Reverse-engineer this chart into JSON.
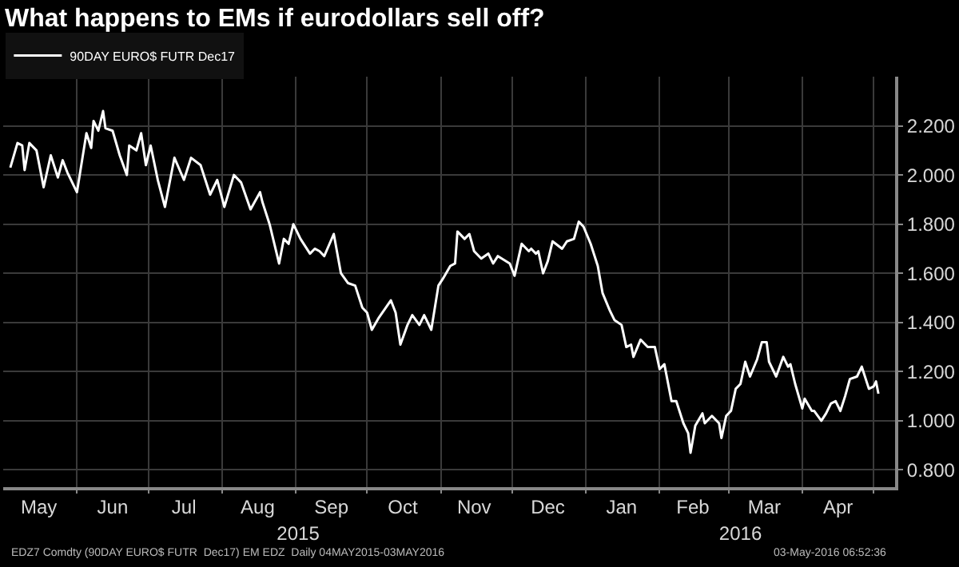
{
  "chart_data": {
    "type": "line",
    "title": "What happens to EMs if eurodollars sell off?",
    "x": [
      "2015-05-04",
      "2015-05-07",
      "2015-05-09",
      "2015-05-10",
      "2015-05-12",
      "2015-05-15",
      "2015-05-18",
      "2015-05-21",
      "2015-05-24",
      "2015-05-26",
      "2015-05-28",
      "2015-06-01",
      "2015-06-05",
      "2015-06-07",
      "2015-06-08",
      "2015-06-10",
      "2015-06-12",
      "2015-06-13",
      "2015-06-16",
      "2015-06-19",
      "2015-06-22",
      "2015-06-23",
      "2015-06-26",
      "2015-06-28",
      "2015-06-30",
      "2015-07-02",
      "2015-07-05",
      "2015-07-08",
      "2015-07-12",
      "2015-07-16",
      "2015-07-19",
      "2015-07-23",
      "2015-07-27",
      "2015-07-30",
      "2015-08-02",
      "2015-08-06",
      "2015-08-09",
      "2015-08-13",
      "2015-08-17",
      "2015-08-18",
      "2015-08-21",
      "2015-08-25",
      "2015-08-27",
      "2015-08-29",
      "2015-08-31",
      "2015-09-03",
      "2015-09-07",
      "2015-09-09",
      "2015-09-11",
      "2015-09-13",
      "2015-09-17",
      "2015-09-20",
      "2015-09-23",
      "2015-09-26",
      "2015-09-29",
      "2015-10-01",
      "2015-10-03",
      "2015-10-06",
      "2015-10-11",
      "2015-10-13",
      "2015-10-15",
      "2015-10-18",
      "2015-10-20",
      "2015-10-23",
      "2015-10-25",
      "2015-10-28",
      "2015-10-31",
      "2015-11-02",
      "2015-11-05",
      "2015-11-07",
      "2015-11-08",
      "2015-11-11",
      "2015-11-13",
      "2015-11-15",
      "2015-11-18",
      "2015-11-21",
      "2015-11-23",
      "2015-11-25",
      "2015-11-30",
      "2015-12-02",
      "2015-12-05",
      "2015-12-08",
      "2015-12-09",
      "2015-12-11",
      "2015-12-12",
      "2015-12-14",
      "2015-12-16",
      "2015-12-18",
      "2015-12-22",
      "2015-12-24",
      "2015-12-27",
      "2015-12-29",
      "2015-12-31",
      "2016-01-03",
      "2016-01-06",
      "2016-01-08",
      "2016-01-11",
      "2016-01-13",
      "2016-01-16",
      "2016-01-18",
      "2016-01-20",
      "2016-01-21",
      "2016-01-24",
      "2016-01-27",
      "2016-01-30",
      "2016-02-01",
      "2016-02-03",
      "2016-02-06",
      "2016-02-08",
      "2016-02-11",
      "2016-02-13",
      "2016-02-14",
      "2016-02-16",
      "2016-02-19",
      "2016-02-20",
      "2016-02-23",
      "2016-02-26",
      "2016-02-27",
      "2016-02-29",
      "2016-03-02",
      "2016-03-04",
      "2016-03-06",
      "2016-03-08",
      "2016-03-10",
      "2016-03-13",
      "2016-03-15",
      "2016-03-17",
      "2016-03-18",
      "2016-03-21",
      "2016-03-24",
      "2016-03-26",
      "2016-03-27",
      "2016-03-29",
      "2016-04-01",
      "2016-04-02",
      "2016-04-05",
      "2016-04-06",
      "2016-04-09",
      "2016-04-11",
      "2016-04-13",
      "2016-04-15",
      "2016-04-17",
      "2016-04-19",
      "2016-04-21",
      "2016-04-24",
      "2016-04-26",
      "2016-04-29",
      "2016-05-01",
      "2016-05-02",
      "2016-05-03"
    ],
    "series": [
      {
        "name": "90DAY EURO$ FUTR Dec17",
        "color": "#ffffff",
        "values": [
          2.03,
          2.13,
          2.12,
          2.02,
          2.13,
          2.1,
          1.95,
          2.08,
          1.99,
          2.06,
          2.01,
          1.93,
          2.17,
          2.11,
          2.22,
          2.18,
          2.26,
          2.19,
          2.18,
          2.08,
          2.0,
          2.12,
          2.1,
          2.17,
          2.04,
          2.12,
          1.98,
          1.87,
          2.07,
          1.98,
          2.07,
          2.04,
          1.92,
          1.98,
          1.87,
          2.0,
          1.97,
          1.86,
          1.93,
          1.89,
          1.8,
          1.64,
          1.74,
          1.72,
          1.8,
          1.74,
          1.68,
          1.7,
          1.69,
          1.67,
          1.76,
          1.6,
          1.56,
          1.55,
          1.46,
          1.44,
          1.37,
          1.42,
          1.49,
          1.44,
          1.31,
          1.39,
          1.43,
          1.39,
          1.43,
          1.37,
          1.55,
          1.58,
          1.63,
          1.64,
          1.77,
          1.74,
          1.76,
          1.69,
          1.66,
          1.68,
          1.64,
          1.67,
          1.64,
          1.59,
          1.72,
          1.69,
          1.7,
          1.68,
          1.69,
          1.6,
          1.65,
          1.73,
          1.7,
          1.73,
          1.74,
          1.81,
          1.79,
          1.72,
          1.63,
          1.52,
          1.45,
          1.41,
          1.39,
          1.3,
          1.31,
          1.26,
          1.33,
          1.3,
          1.3,
          1.21,
          1.23,
          1.08,
          1.08,
          0.99,
          0.95,
          0.87,
          0.98,
          1.03,
          0.99,
          1.02,
          0.99,
          0.93,
          1.02,
          1.04,
          1.13,
          1.15,
          1.24,
          1.18,
          1.25,
          1.32,
          1.32,
          1.24,
          1.18,
          1.26,
          1.22,
          1.23,
          1.15,
          1.05,
          1.09,
          1.04,
          1.04,
          1.0,
          1.03,
          1.07,
          1.08,
          1.04,
          1.1,
          1.17,
          1.18,
          1.22,
          1.13,
          1.14,
          1.16,
          1.11
        ]
      }
    ],
    "xlim": [
      "2015-05-01",
      "2016-05-10"
    ],
    "xticks": [
      {
        "value": "2015-05-16",
        "label": "May"
      },
      {
        "value": "2015-06-16",
        "label": "Jun"
      },
      {
        "value": "2015-07-16",
        "label": "Jul"
      },
      {
        "value": "2015-08-16",
        "label": "Aug"
      },
      {
        "value": "2015-09-16",
        "label": "Sep"
      },
      {
        "value": "2015-10-16",
        "label": "Oct"
      },
      {
        "value": "2015-11-15",
        "label": "Nov"
      },
      {
        "value": "2015-12-16",
        "label": "Dec"
      },
      {
        "value": "2016-01-16",
        "label": "Jan"
      },
      {
        "value": "2016-02-15",
        "label": "Feb"
      },
      {
        "value": "2016-03-16",
        "label": "Mar"
      },
      {
        "value": "2016-04-16",
        "label": "Apr"
      },
      {
        "value": "2015-06-01",
        "label": null
      },
      {
        "value": "2015-07-01",
        "label": null
      },
      {
        "value": "2015-08-01",
        "label": null
      },
      {
        "value": "2015-09-01",
        "label": null
      },
      {
        "value": "2015-10-01",
        "label": null
      },
      {
        "value": "2015-11-01",
        "label": null
      },
      {
        "value": "2015-12-01",
        "label": null
      },
      {
        "value": "2016-01-01",
        "label": null
      },
      {
        "value": "2016-02-01",
        "label": null
      },
      {
        "value": "2016-03-01",
        "label": null
      },
      {
        "value": "2016-04-01",
        "label": null
      },
      {
        "value": "2016-05-01",
        "label": null
      }
    ],
    "x2lim": [
      "2015-05-01",
      "2016-05-10"
    ],
    "x2ticks": [
      {
        "value": "2015-09-02",
        "label": "2015"
      },
      {
        "value": "2016-03-06",
        "label": "2016"
      }
    ],
    "ylim": [
      0.73,
      2.4
    ],
    "yticks": [
      {
        "value": 0.8,
        "label": "0.800"
      },
      {
        "value": 1.0,
        "label": "1.000"
      },
      {
        "value": 1.2,
        "label": "1.200"
      },
      {
        "value": 1.4,
        "label": "1.400"
      },
      {
        "value": 1.6,
        "label": "1.600"
      },
      {
        "value": 1.8,
        "label": "1.800"
      },
      {
        "value": 2.0,
        "label": "2.000"
      },
      {
        "value": 2.2,
        "label": "2.200"
      }
    ],
    "grid": true,
    "legend": "top left",
    "marker": "none",
    "line_style": "solid",
    "annotations": [
      "EDZ7 Comdty (90DAY EURO$ FUTR  Dec17) EM EDZ  Daily 04MAY2015-03MAY2016",
      "03-May-2016 06:52:36"
    ]
  }
}
